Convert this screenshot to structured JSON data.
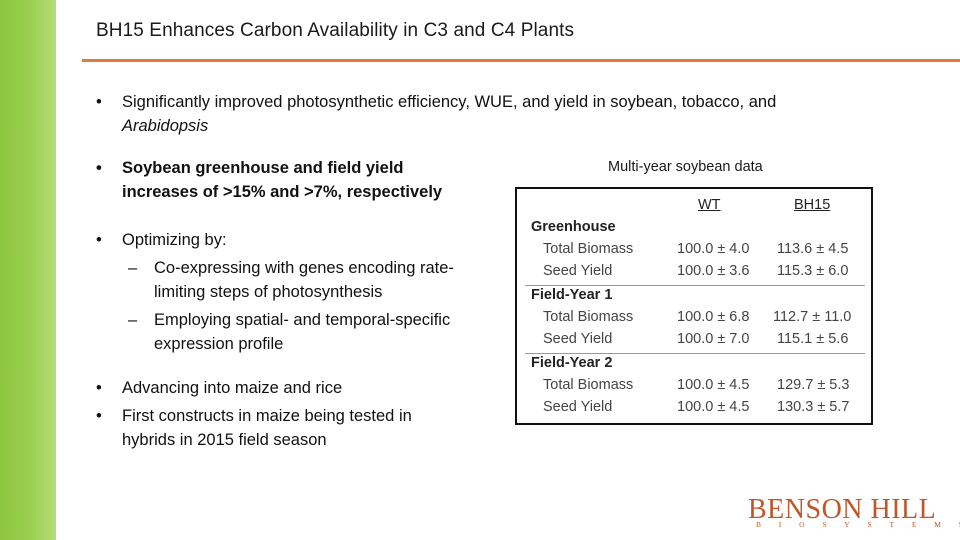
{
  "slide": {
    "title": "BH15 Enhances Carbon Availability in C3 and C4 Plants",
    "bullet_symbol": "•",
    "dash_symbol": "–",
    "bullets": [
      {
        "text": "Significantly improved photosynthetic efficiency, WUE, and yield in soybean, tobacco, and",
        "italic_tail": "Arabidopsis"
      },
      {
        "text": "Soybean greenhouse and field yield increases of >15% and >7%, respectively"
      },
      {
        "text": "Optimizing by:",
        "subitems": [
          "Co-expressing with genes encoding rate-limiting steps of photosynthesis",
          "Employing spatial- and temporal-specific expression profile"
        ]
      },
      {
        "text": "Advancing into maize and rice"
      },
      {
        "text": "First constructs in maize being tested in hybrids in 2015 field season"
      }
    ]
  },
  "table": {
    "caption": "Multi-year soybean data",
    "columns": [
      "WT",
      "BH15"
    ],
    "groups": [
      {
        "name": "Greenhouse",
        "rows": [
          {
            "label": "Total Biomass",
            "wt": "100.0 ± 4.0",
            "bh15": "113.6 ± 4.5"
          },
          {
            "label": "Seed Yield",
            "wt": "100.0 ± 3.6",
            "bh15": "115.3 ± 6.0"
          }
        ]
      },
      {
        "name": "Field-Year 1",
        "rows": [
          {
            "label": "Total Biomass",
            "wt": "100.0 ± 6.8",
            "bh15": "112.7 ± 11.0"
          },
          {
            "label": "Seed Yield",
            "wt": "100.0 ± 7.0",
            "bh15": "115.1 ± 5.6"
          }
        ]
      },
      {
        "name": "Field-Year 2",
        "rows": [
          {
            "label": "Total Biomass",
            "wt": "100.0 ± 4.5",
            "bh15": "129.7 ± 5.3"
          },
          {
            "label": "Seed Yield",
            "wt": "100.0 ± 4.5",
            "bh15": "130.3 ± 5.7"
          }
        ]
      }
    ]
  },
  "logo": {
    "main": "BENSON HILL",
    "sub": "BIOSYSTEMS"
  },
  "colors": {
    "side_bar": "#8cc63f",
    "title_rule": "#e07b39",
    "logo": "#c0572a"
  }
}
